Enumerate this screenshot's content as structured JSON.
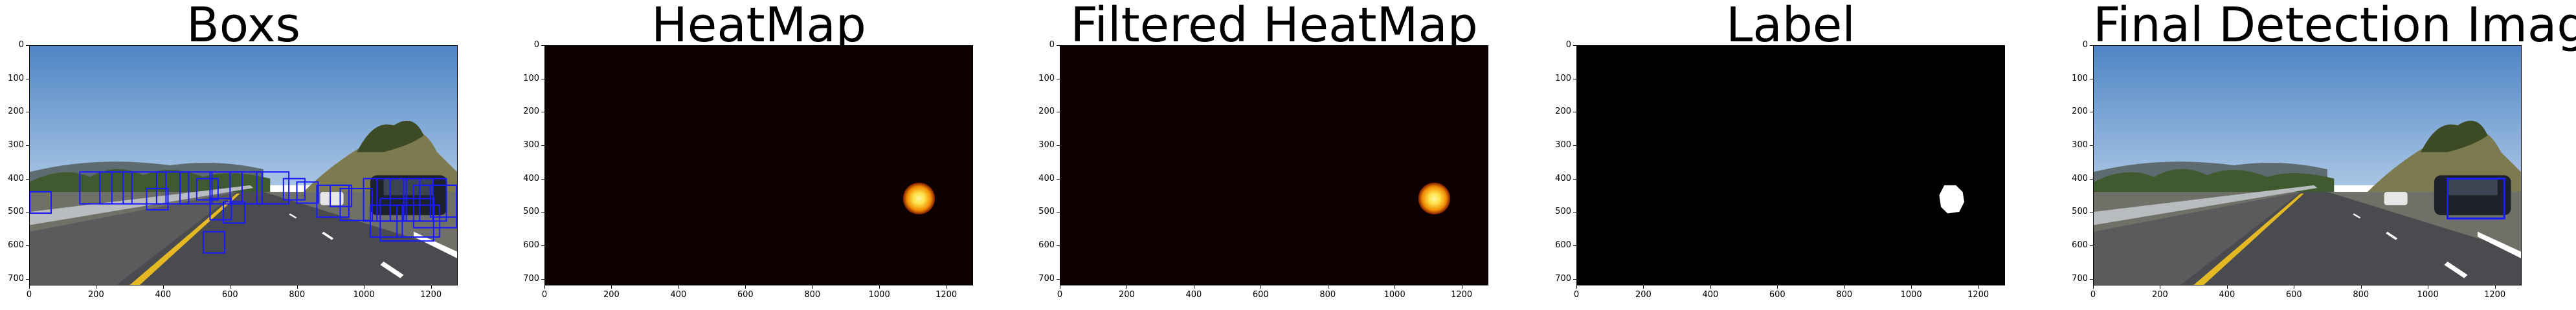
{
  "panels": [
    {
      "title": "Boxs",
      "kind": "road-boxes"
    },
    {
      "title": "HeatMap",
      "kind": "heat"
    },
    {
      "title": "Filtered HeatMap",
      "kind": "heat"
    },
    {
      "title": "Label",
      "kind": "label"
    },
    {
      "title": "Final Detection Image",
      "kind": "road-final"
    }
  ],
  "axes": {
    "yticks": [
      "0",
      "100",
      "200",
      "300",
      "400",
      "500",
      "600",
      "700"
    ],
    "xticks": [
      "0",
      "200",
      "400",
      "600",
      "800",
      "1000",
      "1200"
    ],
    "xrange": [
      0,
      1280
    ],
    "yrange": [
      0,
      720
    ]
  },
  "colors": {
    "box": "#1a1aff",
    "heat_bg": "#0e0000",
    "heat_core": "#ffe14a",
    "label_bg": "#000000",
    "label_blob": "#ffffff"
  }
}
